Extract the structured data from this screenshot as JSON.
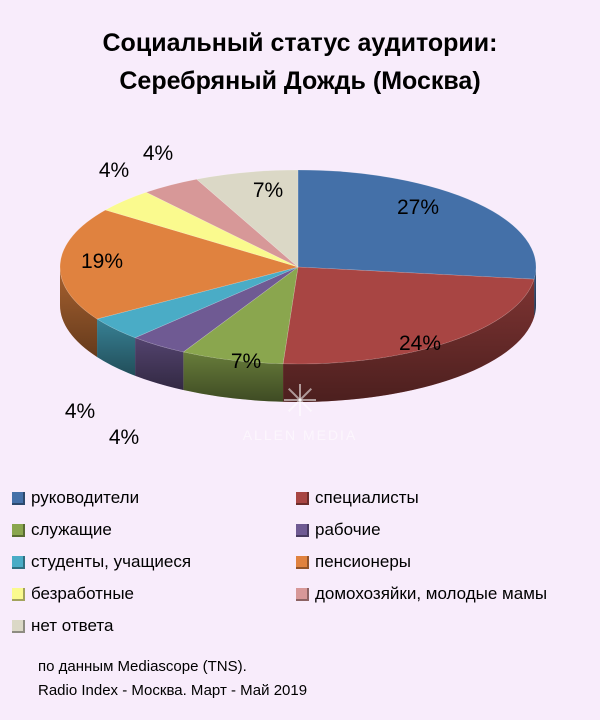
{
  "title_line1": "Социальный статус аудитории:",
  "title_line2": "Серебряный Дождь (Москва)",
  "watermark": "ALLEN MEDIA",
  "chart_data": {
    "type": "pie",
    "title": "Социальный статус аудитории: Серебряный Дождь (Москва)",
    "three_d": true,
    "legend_position": "bottom",
    "slices": [
      {
        "label": "руководители",
        "value": 27,
        "display": "27%",
        "color": "#4470a8"
      },
      {
        "label": "специалисты",
        "value": 24,
        "display": "24%",
        "color": "#a84543"
      },
      {
        "label": "служащие",
        "value": 7,
        "display": "7%",
        "color": "#8aa64e"
      },
      {
        "label": "рабочие",
        "value": 4,
        "display": "4%",
        "color": "#6f5a93"
      },
      {
        "label": "студенты, учащиеся",
        "value": 4,
        "display": "4%",
        "color": "#4aacc6"
      },
      {
        "label": "пенсионеры",
        "value": 19,
        "display": "19%",
        "color": "#e0823f"
      },
      {
        "label": "безработные",
        "value": 4,
        "display": "4%",
        "color": "#fafa8e"
      },
      {
        "label": "домохозяйки, молодые мамы",
        "value": 4,
        "display": "4%",
        "color": "#d79898"
      },
      {
        "label": "нет ответа",
        "value": 7,
        "display": "7%",
        "color": "#dbd8c6"
      }
    ]
  },
  "source_line1": "по данным Mediascope (TNS).",
  "source_line2": "Radio Index - Москва. Март - Май 2019"
}
